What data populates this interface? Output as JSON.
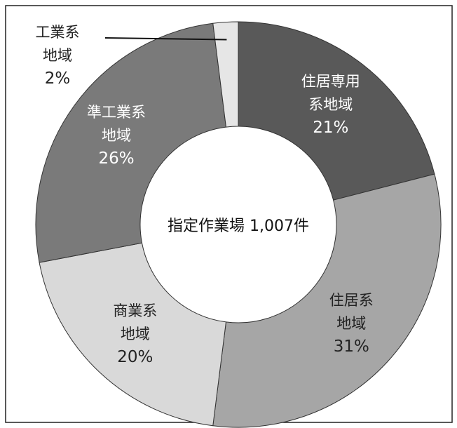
{
  "chart_data": {
    "type": "donut",
    "center_label": "指定作業場 1,007件",
    "categories": [
      "住居専用\n系地域",
      "住居系\n地域",
      "商業系\n地域",
      "準工業系\n地域",
      "工業系\n地域"
    ],
    "values": [
      21,
      31,
      20,
      26,
      2
    ],
    "value_labels": [
      "21%",
      "31%",
      "20%",
      "26%",
      "2%"
    ],
    "colors": [
      "#595959",
      "#a6a6a6",
      "#d9d9d9",
      "#7a7a7a",
      "#e6e6e6"
    ]
  }
}
